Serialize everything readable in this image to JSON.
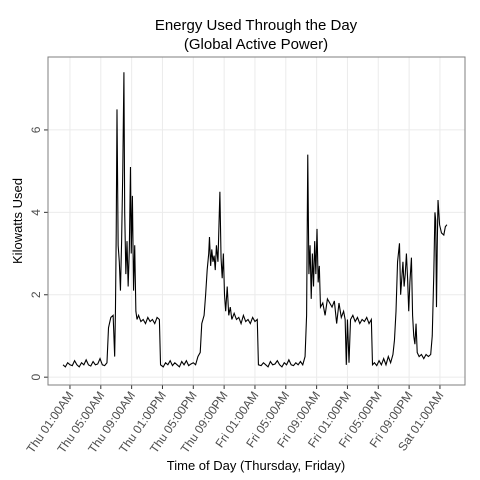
{
  "chart_data": {
    "type": "line",
    "title": "Energy Used Through the Day",
    "subtitle": "(Global Active Power)",
    "x_label": "Time of Day (Thursday, Friday)",
    "y_label": "Kilowatts Used",
    "color": "#000000",
    "grid": true,
    "xlim": [
      -1.85,
      52.25
    ],
    "ylim": [
      -0.19,
      7.77
    ],
    "yticks": [
      0,
      2,
      4,
      6
    ],
    "xticks": [
      {
        "value": 1,
        "label": "Thu 01:00AM"
      },
      {
        "value": 5,
        "label": "Thu 05:00AM"
      },
      {
        "value": 9,
        "label": "Thu 09:00AM"
      },
      {
        "value": 13,
        "label": "Thu 01:00PM"
      },
      {
        "value": 17,
        "label": "Thu 05:00PM"
      },
      {
        "value": 21,
        "label": "Thu 09:00PM"
      },
      {
        "value": 25,
        "label": "Fri 01:00AM"
      },
      {
        "value": 29,
        "label": "Fri 05:00AM"
      },
      {
        "value": 33,
        "label": "Fri 09:00AM"
      },
      {
        "value": 37,
        "label": "Fri 01:00PM"
      },
      {
        "value": 41,
        "label": "Fri 05:00PM"
      },
      {
        "value": 45,
        "label": "Fri 09:00PM"
      },
      {
        "value": 49,
        "label": "Sat 01:00AM"
      }
    ],
    "x": [
      0.1,
      0.4,
      0.7,
      1.0,
      1.3,
      1.6,
      1.9,
      2.2,
      2.5,
      2.8,
      3.1,
      3.4,
      3.7,
      4.0,
      4.3,
      4.6,
      4.9,
      5.2,
      5.5,
      5.8,
      6.0,
      6.3,
      6.6,
      6.8,
      6.9,
      7.0,
      7.1,
      7.25,
      7.4,
      7.55,
      7.7,
      7.85,
      8.0,
      8.1,
      8.25,
      8.4,
      8.55,
      8.7,
      8.85,
      8.95,
      9.1,
      9.25,
      9.4,
      9.55,
      9.7,
      9.9,
      10.2,
      10.5,
      10.8,
      11.1,
      11.4,
      11.7,
      12.0,
      12.3,
      12.6,
      12.75,
      13.1,
      13.4,
      13.7,
      14.0,
      14.3,
      14.6,
      14.9,
      15.2,
      15.5,
      15.8,
      16.1,
      16.4,
      16.7,
      17.0,
      17.3,
      17.6,
      17.9,
      18.1,
      18.4,
      18.6,
      18.8,
      19.0,
      19.1,
      19.25,
      19.4,
      19.55,
      19.7,
      19.85,
      20.0,
      20.2,
      20.45,
      20.6,
      20.75,
      20.9,
      21.05,
      21.2,
      21.4,
      21.6,
      21.8,
      22.0,
      22.3,
      22.6,
      22.9,
      23.2,
      23.5,
      23.8,
      24.1,
      24.4,
      24.7,
      25.0,
      25.3,
      25.45,
      25.8,
      26.1,
      26.4,
      26.7,
      27.0,
      27.3,
      27.6,
      27.9,
      28.2,
      28.5,
      28.8,
      29.1,
      29.4,
      29.7,
      30.0,
      30.3,
      30.6,
      30.9,
      31.2,
      31.5,
      31.7,
      31.85,
      32.0,
      32.15,
      32.3,
      32.45,
      32.6,
      32.75,
      32.9,
      33.05,
      33.2,
      33.35,
      33.5,
      33.8,
      34.1,
      34.4,
      34.7,
      35.0,
      35.3,
      35.6,
      35.9,
      36.2,
      36.5,
      36.7,
      36.85,
      37.0,
      37.2,
      37.4,
      37.7,
      38.0,
      38.3,
      38.6,
      38.9,
      39.2,
      39.5,
      39.8,
      40.1,
      40.25,
      40.5,
      40.8,
      41.1,
      41.4,
      41.7,
      42.0,
      42.3,
      42.6,
      42.9,
      43.1,
      43.3,
      43.5,
      43.75,
      43.9,
      44.05,
      44.2,
      44.35,
      44.5,
      44.65,
      44.8,
      44.95,
      45.1,
      45.3,
      45.45,
      45.6,
      45.75,
      45.9,
      46.05,
      46.3,
      46.6,
      46.9,
      47.2,
      47.5,
      47.8,
      48.0,
      48.2,
      48.35,
      48.45,
      48.55,
      48.65,
      48.75,
      48.95,
      49.2,
      49.5,
      49.7,
      49.9
    ],
    "values": [
      0.3,
      0.25,
      0.35,
      0.3,
      0.28,
      0.4,
      0.3,
      0.25,
      0.35,
      0.3,
      0.42,
      0.3,
      0.27,
      0.38,
      0.3,
      0.32,
      0.45,
      0.3,
      0.28,
      0.35,
      1.2,
      1.45,
      1.5,
      0.5,
      1.6,
      3.5,
      6.5,
      3.2,
      2.8,
      2.1,
      3.3,
      5.0,
      7.4,
      4.0,
      2.5,
      3.3,
      2.2,
      3.1,
      5.1,
      3.0,
      4.4,
      2.1,
      3.2,
      1.6,
      1.4,
      1.5,
      1.35,
      1.4,
      1.3,
      1.45,
      1.35,
      1.4,
      1.3,
      1.45,
      1.4,
      0.3,
      0.25,
      0.35,
      0.3,
      0.4,
      0.28,
      0.35,
      0.3,
      0.25,
      0.38,
      0.3,
      0.4,
      0.28,
      0.32,
      0.35,
      0.3,
      0.5,
      0.6,
      1.3,
      1.5,
      2.0,
      2.6,
      3.0,
      3.4,
      2.7,
      3.1,
      2.8,
      2.95,
      2.6,
      3.2,
      2.8,
      4.5,
      2.9,
      2.4,
      3.0,
      2.0,
      1.6,
      2.2,
      1.5,
      1.7,
      1.4,
      1.55,
      1.4,
      1.45,
      1.3,
      1.5,
      1.35,
      1.4,
      1.3,
      1.45,
      1.35,
      1.4,
      0.3,
      0.28,
      0.35,
      0.3,
      0.25,
      0.38,
      0.3,
      0.32,
      0.4,
      0.3,
      0.25,
      0.35,
      0.3,
      0.42,
      0.3,
      0.28,
      0.35,
      0.3,
      0.38,
      0.3,
      0.5,
      1.5,
      5.4,
      2.5,
      3.2,
      1.9,
      3.0,
      2.2,
      3.3,
      2.5,
      3.6,
      2.3,
      2.7,
      1.7,
      1.8,
      1.5,
      1.9,
      1.8,
      1.7,
      1.85,
      1.3,
      1.8,
      1.45,
      1.6,
      1.4,
      0.3,
      1.4,
      0.35,
      1.4,
      1.5,
      1.35,
      1.45,
      1.3,
      1.4,
      1.35,
      1.45,
      1.3,
      1.4,
      0.3,
      0.35,
      0.28,
      0.4,
      0.3,
      0.45,
      0.3,
      0.5,
      0.35,
      0.55,
      0.9,
      1.6,
      2.8,
      3.25,
      2.0,
      2.4,
      2.8,
      2.2,
      2.5,
      3.0,
      2.4,
      1.6,
      2.3,
      2.9,
      1.5,
      1.0,
      0.8,
      1.3,
      0.6,
      0.5,
      0.55,
      0.45,
      0.55,
      0.5,
      0.55,
      1.0,
      2.5,
      4.0,
      3.8,
      1.7,
      3.2,
      4.3,
      3.7,
      3.5,
      3.45,
      3.65,
      3.7
    ]
  }
}
